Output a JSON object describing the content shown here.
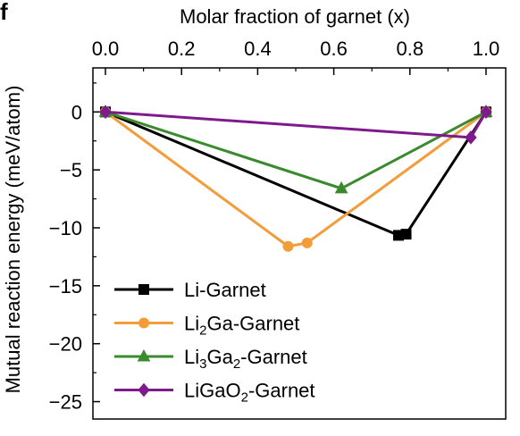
{
  "panel_label": "f",
  "chart_data": {
    "type": "line",
    "xlabel": "Molar fraction of garnet (x)",
    "ylabel": "Mutual reaction energy (meV/atom)",
    "xlim": [
      0.0,
      1.0
    ],
    "ylim": [
      -26.5,
      3.8
    ],
    "x_ticks": [
      0.0,
      0.2,
      0.4,
      0.6,
      0.8,
      1.0
    ],
    "x_tick_labels": [
      "0.0",
      "0.2",
      "0.4",
      "0.6",
      "0.8",
      "1.0"
    ],
    "y_ticks": [
      0,
      -5,
      -10,
      -15,
      -20,
      -25
    ],
    "y_tick_labels": [
      "0",
      "−5",
      "−10",
      "−15",
      "−20",
      "−25"
    ],
    "x_axis_position": "top",
    "grid": false,
    "legend_position": "bottom-left",
    "series": [
      {
        "name": "Li-Garnet",
        "legend_label": {
          "parts": [
            {
              "text": "Li-Garnet",
              "sub": false
            }
          ]
        },
        "color": "#000000",
        "marker": "square",
        "points": [
          [
            0.0,
            0.0
          ],
          [
            0.77,
            -10.65
          ],
          [
            0.79,
            -10.55
          ],
          [
            1.0,
            0.0
          ]
        ]
      },
      {
        "name": "Li2Ga-Garnet",
        "legend_label": {
          "parts": [
            {
              "text": "Li",
              "sub": false
            },
            {
              "text": "2",
              "sub": true
            },
            {
              "text": "Ga-Garnet",
              "sub": false
            }
          ]
        },
        "color": "#f39c3a",
        "marker": "circle",
        "points": [
          [
            0.0,
            0.0
          ],
          [
            0.48,
            -11.6
          ],
          [
            0.53,
            -11.3
          ],
          [
            1.0,
            0.0
          ]
        ]
      },
      {
        "name": "Li3Ga2-Garnet",
        "legend_label": {
          "parts": [
            {
              "text": "Li",
              "sub": false
            },
            {
              "text": "3",
              "sub": true
            },
            {
              "text": "Ga",
              "sub": false
            },
            {
              "text": "2",
              "sub": true
            },
            {
              "text": "-Garnet",
              "sub": false
            }
          ]
        },
        "color": "#3a8a2e",
        "marker": "triangle",
        "points": [
          [
            0.0,
            0.0
          ],
          [
            0.62,
            -6.6
          ],
          [
            1.0,
            0.0
          ]
        ]
      },
      {
        "name": "LiGaO2-Garnet",
        "legend_label": {
          "parts": [
            {
              "text": "LiGaO",
              "sub": false
            },
            {
              "text": "2",
              "sub": true
            },
            {
              "text": "-Garnet",
              "sub": false
            }
          ]
        },
        "color": "#7e1a8c",
        "marker": "diamond",
        "points": [
          [
            0.0,
            0.0
          ],
          [
            0.96,
            -2.2
          ],
          [
            1.0,
            0.0
          ]
        ]
      }
    ]
  }
}
